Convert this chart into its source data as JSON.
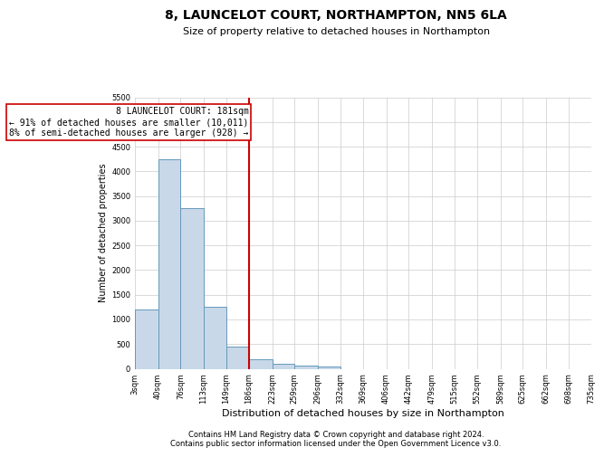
{
  "title": "8, LAUNCELOT COURT, NORTHAMPTON, NN5 6LA",
  "subtitle": "Size of property relative to detached houses in Northampton",
  "xlabel": "Distribution of detached houses by size in Northampton",
  "ylabel": "Number of detached properties",
  "property_label": "8 LAUNCELOT COURT: 181sqm",
  "annotation_line1": "← 91% of detached houses are smaller (10,011)",
  "annotation_line2": "8% of semi-detached houses are larger (928) →",
  "bar_color": "#c8d8e8",
  "bar_edge_color": "#6699bb",
  "vline_color": "#cc0000",
  "annotation_box_color": "#cc0000",
  "ylim": [
    0,
    5500
  ],
  "yticks": [
    0,
    500,
    1000,
    1500,
    2000,
    2500,
    3000,
    3500,
    4000,
    4500,
    5000,
    5500
  ],
  "bins": [
    3,
    40,
    76,
    113,
    149,
    186,
    223,
    259,
    296,
    332,
    369,
    406,
    442,
    479,
    515,
    552,
    589,
    625,
    662,
    698,
    735
  ],
  "counts": [
    1200,
    4250,
    3250,
    1250,
    450,
    200,
    100,
    60,
    50,
    0,
    0,
    0,
    0,
    0,
    0,
    0,
    0,
    0,
    0,
    0
  ],
  "footer_line1": "Contains HM Land Registry data © Crown copyright and database right 2024.",
  "footer_line2": "Contains public sector information licensed under the Open Government Licence v3.0.",
  "background_color": "#ffffff",
  "grid_color": "#cccccc",
  "title_fontsize": 10,
  "subtitle_fontsize": 8,
  "xlabel_fontsize": 8,
  "ylabel_fontsize": 7,
  "tick_fontsize": 6,
  "footer_fontsize": 6,
  "annotation_fontsize": 7
}
